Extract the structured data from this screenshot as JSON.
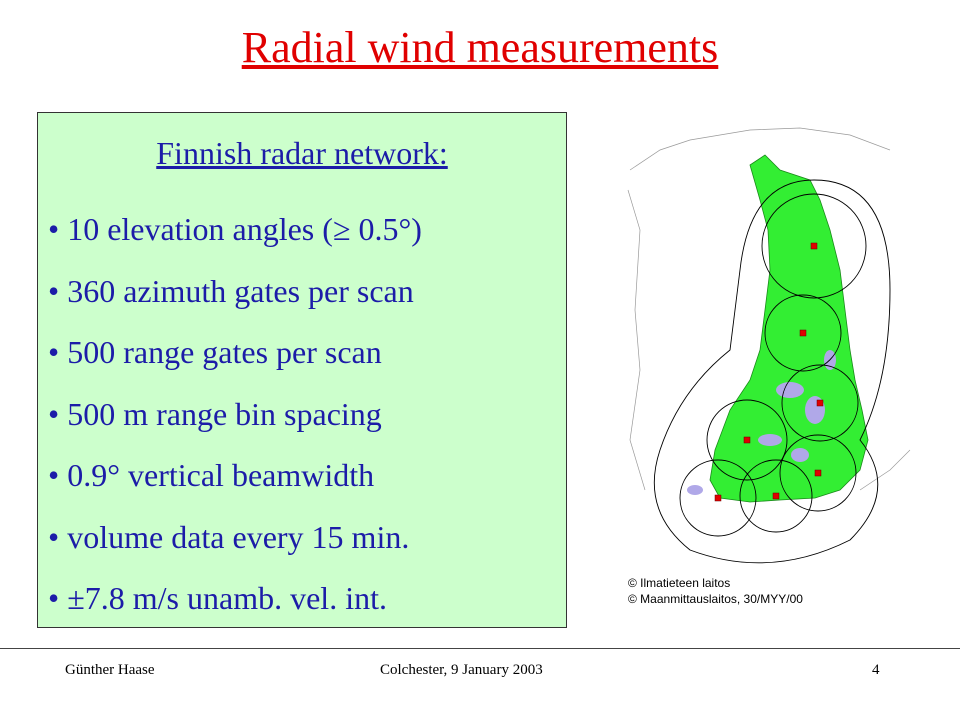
{
  "title": "Radial wind measurements",
  "box": {
    "heading": "Finnish radar network:",
    "bullets": [
      "• 10 elevation angles (≥ 0.5°)",
      "• 360 azimuth gates per scan",
      "• 500 range gates per scan",
      "• 500 m range bin spacing",
      "• 0.9° vertical beamwidth",
      "• volume data every 15 min.",
      "• ±7.8 m/s unamb. vel. int."
    ]
  },
  "map": {
    "credits": [
      "© Ilmatieteen laitos",
      "© Maanmittauslaitos, 30/MYY/00"
    ]
  },
  "footer": {
    "author": "Günther Haase",
    "event": "Colchester, 9 January 2003",
    "page": "4"
  }
}
